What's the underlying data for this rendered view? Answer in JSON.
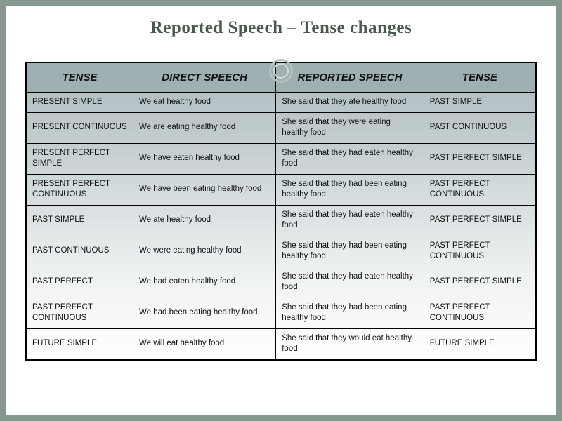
{
  "title": "Reported Speech – Tense changes",
  "headers": [
    "TENSE",
    "DIRECT SPEECH",
    "REPORTED SPEECH",
    "TENSE"
  ],
  "rows": [
    [
      "PRESENT SIMPLE",
      "We eat healthy food",
      "She said that they ate healthy food",
      "PAST SIMPLE"
    ],
    [
      "PRESENT CONTINUOUS",
      "We are eating healthy food",
      "She said that they were eating healthy food",
      "PAST CONTINUOUS"
    ],
    [
      "PRESENT PERFECT SIMPLE",
      "We have eaten healthy food",
      "She said that they had eaten healthy food",
      "PAST PERFECT SIMPLE"
    ],
    [
      "PRESENT PERFECT CONTINUOUS",
      "We have been eating healthy food",
      "She said that they had been eating  healthy food",
      "PAST PERFECT CONTINUOUS"
    ],
    [
      "PAST SIMPLE",
      "We ate healthy food",
      "She said that they had eaten healthy food",
      "PAST PERFECT SIMPLE"
    ],
    [
      "PAST CONTINUOUS",
      "We were eating healthy food",
      "She said that they had been eating healthy food",
      "PAST PERFECT CONTINUOUS"
    ],
    [
      "PAST PERFECT",
      "We had eaten healthy food",
      "She said that they had eaten healthy food",
      "PAST PERFECT SIMPLE"
    ],
    [
      "PAST PERFECT CONTINUOUS",
      "We had been eating healthy food",
      "She said that they had been eating  healthy food",
      "PAST PERFECT CONTINUOUS"
    ],
    [
      "FUTURE SIMPLE",
      "We will eat healthy food",
      "She said that they would eat healthy food",
      "FUTURE SIMPLE"
    ]
  ],
  "colors": {
    "page_bg": "#87998e",
    "slide_bg": "#ffffff",
    "title_color": "#4a5a4f",
    "header_bg": "#9fb0b3",
    "border": "#000000"
  }
}
